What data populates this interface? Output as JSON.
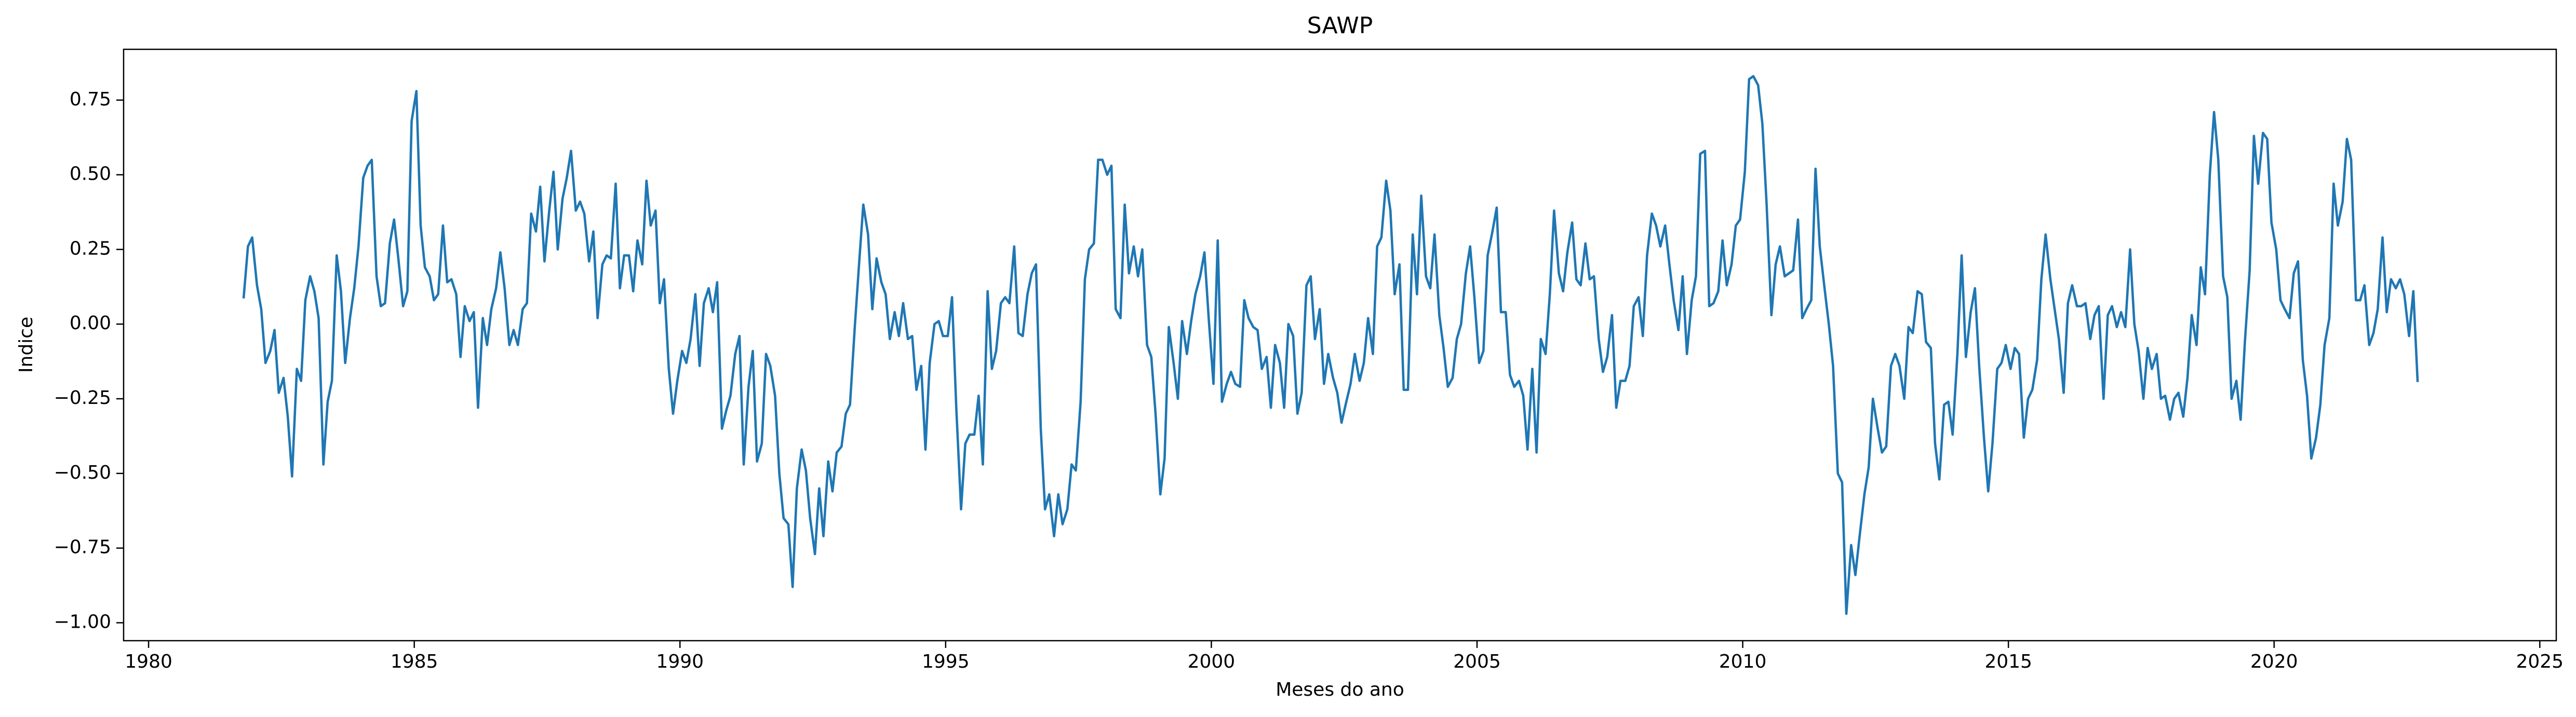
{
  "chart_data": {
    "type": "line",
    "title": "SAWP",
    "xlabel": "Meses do ano",
    "ylabel": "Indice",
    "xlim": [
      1979.53,
      2025.31
    ],
    "xticks": [
      1980,
      1985,
      1990,
      1995,
      2000,
      2005,
      2010,
      2015,
      2020,
      2025
    ],
    "ylim": [
      -1.06,
      0.92
    ],
    "yticks": [
      {
        "value": -1,
        "label": "−1.00"
      },
      {
        "value": -0.75,
        "label": "−0.75"
      },
      {
        "value": -0.5,
        "label": "−0.50"
      },
      {
        "value": -0.25,
        "label": "−0.25"
      },
      {
        "value": 0,
        "label": "0.00"
      },
      {
        "value": 0.25,
        "label": "0.25"
      },
      {
        "value": 0.5,
        "label": "0.50"
      },
      {
        "value": 0.75,
        "label": "0.75"
      }
    ],
    "x": [
      1981.79,
      1981.87,
      1981.95,
      1982.04,
      1982.12,
      1982.2,
      1982.29,
      1982.37,
      1982.45,
      1982.54,
      1982.62,
      1982.7,
      1982.79,
      1982.87,
      1982.95,
      1983.04,
      1983.12,
      1983.2,
      1983.29,
      1983.37,
      1983.45,
      1983.54,
      1983.62,
      1983.7,
      1983.79,
      1983.87,
      1983.95,
      1984.04,
      1984.12,
      1984.2,
      1984.29,
      1984.37,
      1984.45,
      1984.54,
      1984.62,
      1984.7,
      1984.79,
      1984.87,
      1984.95,
      1985.04,
      1985.12,
      1985.2,
      1985.29,
      1985.37,
      1985.45,
      1985.54,
      1985.62,
      1985.7,
      1985.79,
      1985.87,
      1985.95,
      1986.04,
      1986.12,
      1986.2,
      1986.29,
      1986.37,
      1986.45,
      1986.54,
      1986.62,
      1986.7,
      1986.79,
      1986.87,
      1986.95,
      1987.04,
      1987.12,
      1987.2,
      1987.29,
      1987.37,
      1987.45,
      1987.54,
      1987.62,
      1987.7,
      1987.79,
      1987.87,
      1987.95,
      1988.04,
      1988.12,
      1988.2,
      1988.29,
      1988.37,
      1988.45,
      1988.54,
      1988.62,
      1988.7,
      1988.79,
      1988.87,
      1988.95,
      1989.04,
      1989.12,
      1989.2,
      1989.29,
      1989.37,
      1989.45,
      1989.54,
      1989.62,
      1989.7,
      1989.79,
      1989.87,
      1989.95,
      1990.04,
      1990.12,
      1990.2,
      1990.29,
      1990.37,
      1990.45,
      1990.54,
      1990.62,
      1990.7,
      1990.79,
      1990.87,
      1990.95,
      1991.04,
      1991.12,
      1991.2,
      1991.29,
      1991.37,
      1991.45,
      1991.54,
      1991.62,
      1991.7,
      1991.79,
      1991.87,
      1991.95,
      1992.04,
      1992.12,
      1992.2,
      1992.29,
      1992.37,
      1992.45,
      1992.54,
      1992.62,
      1992.7,
      1992.79,
      1992.87,
      1992.95,
      1993.04,
      1993.12,
      1993.2,
      1993.29,
      1993.37,
      1993.45,
      1993.54,
      1993.62,
      1993.7,
      1993.79,
      1993.87,
      1993.95,
      1994.04,
      1994.12,
      1994.2,
      1994.29,
      1994.37,
      1994.45,
      1994.54,
      1994.62,
      1994.7,
      1994.79,
      1994.87,
      1994.95,
      1995.04,
      1995.12,
      1995.2,
      1995.29,
      1995.37,
      1995.45,
      1995.54,
      1995.62,
      1995.7,
      1995.79,
      1995.87,
      1995.95,
      1996.04,
      1996.12,
      1996.2,
      1996.29,
      1996.37,
      1996.45,
      1996.54,
      1996.62,
      1996.7,
      1996.79,
      1996.87,
      1996.95,
      1997.04,
      1997.12,
      1997.2,
      1997.29,
      1997.37,
      1997.45,
      1997.54,
      1997.62,
      1997.7,
      1997.79,
      1997.87,
      1997.95,
      1998.04,
      1998.12,
      1998.2,
      1998.29,
      1998.37,
      1998.45,
      1998.54,
      1998.62,
      1998.7,
      1998.79,
      1998.87,
      1998.95,
      1999.04,
      1999.12,
      1999.2,
      1999.29,
      1999.37,
      1999.45,
      1999.54,
      1999.62,
      1999.7,
      1999.79,
      1999.87,
      1999.95,
      2000.04,
      2000.12,
      2000.2,
      2000.29,
      2000.37,
      2000.45,
      2000.54,
      2000.62,
      2000.7,
      2000.79,
      2000.87,
      2000.95,
      2001.04,
      2001.12,
      2001.2,
      2001.29,
      2001.37,
      2001.45,
      2001.54,
      2001.62,
      2001.7,
      2001.79,
      2001.87,
      2001.95,
      2002.04,
      2002.12,
      2002.2,
      2002.29,
      2002.37,
      2002.45,
      2002.54,
      2002.62,
      2002.7,
      2002.79,
      2002.87,
      2002.95,
      2003.04,
      2003.12,
      2003.2,
      2003.29,
      2003.37,
      2003.45,
      2003.54,
      2003.62,
      2003.7,
      2003.79,
      2003.87,
      2003.95,
      2004.04,
      2004.12,
      2004.2,
      2004.29,
      2004.37,
      2004.45,
      2004.54,
      2004.62,
      2004.7,
      2004.79,
      2004.87,
      2004.95,
      2005.04,
      2005.12,
      2005.2,
      2005.29,
      2005.37,
      2005.45,
      2005.54,
      2005.62,
      2005.7,
      2005.79,
      2005.87,
      2005.95,
      2006.04,
      2006.12,
      2006.2,
      2006.29,
      2006.37,
      2006.45,
      2006.54,
      2006.62,
      2006.7,
      2006.79,
      2006.87,
      2006.95,
      2007.04,
      2007.12,
      2007.2,
      2007.29,
      2007.37,
      2007.45,
      2007.54,
      2007.62,
      2007.7,
      2007.79,
      2007.87,
      2007.95,
      2008.04,
      2008.12,
      2008.2,
      2008.29,
      2008.37,
      2008.45,
      2008.54,
      2008.62,
      2008.7,
      2008.79,
      2008.87,
      2008.95,
      2009.04,
      2009.12,
      2009.2,
      2009.29,
      2009.37,
      2009.45,
      2009.54,
      2009.62,
      2009.7,
      2009.79,
      2009.87,
      2009.95,
      2010.04,
      2010.12,
      2010.2,
      2010.29,
      2010.37,
      2010.45,
      2010.54,
      2010.62,
      2010.7,
      2010.79,
      2010.87,
      2010.95,
      2011.04,
      2011.12,
      2011.2,
      2011.29,
      2011.37,
      2011.45,
      2011.54,
      2011.62,
      2011.7,
      2011.79,
      2011.87,
      2011.95,
      2012.04,
      2012.12,
      2012.2,
      2012.29,
      2012.37,
      2012.45,
      2012.54,
      2012.62,
      2012.7,
      2012.79,
      2012.87,
      2012.95,
      2013.04,
      2013.12,
      2013.2,
      2013.29,
      2013.37,
      2013.45,
      2013.54,
      2013.62,
      2013.7,
      2013.79,
      2013.87,
      2013.95,
      2014.04,
      2014.12,
      2014.2,
      2014.29,
      2014.37,
      2014.45,
      2014.54,
      2014.62,
      2014.7,
      2014.79,
      2014.87,
      2014.95,
      2015.04,
      2015.12,
      2015.2,
      2015.29,
      2015.37,
      2015.45,
      2015.54,
      2015.62,
      2015.7,
      2015.79,
      2015.87,
      2015.95,
      2016.04,
      2016.12,
      2016.2,
      2016.29,
      2016.37,
      2016.45,
      2016.54,
      2016.62,
      2016.7,
      2016.79,
      2016.87,
      2016.95,
      2017.04,
      2017.12,
      2017.2,
      2017.29,
      2017.37,
      2017.45,
      2017.54,
      2017.62,
      2017.7,
      2017.79,
      2017.87,
      2017.95,
      2018.04,
      2018.12,
      2018.2,
      2018.29,
      2018.37,
      2018.45,
      2018.54,
      2018.62,
      2018.7,
      2018.79,
      2018.87,
      2018.95,
      2019.04,
      2019.12,
      2019.2,
      2019.29,
      2019.37,
      2019.45,
      2019.54,
      2019.62,
      2019.7,
      2019.79,
      2019.87,
      2019.95,
      2020.04,
      2020.12,
      2020.2,
      2020.29,
      2020.37,
      2020.45,
      2020.54,
      2020.62,
      2020.7,
      2020.79,
      2020.87,
      2020.95,
      2021.04,
      2021.12,
      2021.2,
      2021.29,
      2021.37,
      2021.45,
      2021.54,
      2021.62,
      2021.7,
      2021.79,
      2021.87,
      2021.95,
      2022.04,
      2022.12,
      2022.2,
      2022.29,
      2022.37,
      2022.45,
      2022.54,
      2022.62,
      2022.7
    ],
    "series": [
      {
        "color": "#1f77b4",
        "values": [
          0.09,
          0.26,
          0.29,
          0.13,
          0.05,
          -0.13,
          -0.09,
          -0.02,
          -0.23,
          -0.18,
          -0.31,
          -0.51,
          -0.15,
          -0.19,
          0.08,
          0.16,
          0.11,
          0.02,
          -0.47,
          -0.26,
          -0.19,
          0.23,
          0.11,
          -0.13,
          0.02,
          0.12,
          0.26,
          0.49,
          0.53,
          0.55,
          0.16,
          0.06,
          0.07,
          0.27,
          0.35,
          0.22,
          0.06,
          0.11,
          0.68,
          0.78,
          0.33,
          0.19,
          0.16,
          0.08,
          0.1,
          0.33,
          0.14,
          0.15,
          0.1,
          -0.11,
          0.06,
          0.01,
          0.04,
          -0.28,
          0.02,
          -0.07,
          0.05,
          0.12,
          0.24,
          0.12,
          -0.07,
          -0.02,
          -0.07,
          0.05,
          0.07,
          0.37,
          0.31,
          0.46,
          0.21,
          0.38,
          0.51,
          0.25,
          0.42,
          0.49,
          0.58,
          0.38,
          0.41,
          0.37,
          0.21,
          0.31,
          0.02,
          0.2,
          0.23,
          0.22,
          0.47,
          0.12,
          0.23,
          0.23,
          0.11,
          0.28,
          0.2,
          0.48,
          0.33,
          0.38,
          0.07,
          0.15,
          -0.15,
          -0.3,
          -0.19,
          -0.09,
          -0.13,
          -0.05,
          0.1,
          -0.14,
          0.07,
          0.12,
          0.04,
          0.14,
          -0.35,
          -0.29,
          -0.24,
          -0.1,
          -0.04,
          -0.47,
          -0.21,
          -0.09,
          -0.46,
          -0.4,
          -0.1,
          -0.14,
          -0.24,
          -0.5,
          -0.65,
          -0.67,
          -0.88,
          -0.55,
          -0.42,
          -0.49,
          -0.65,
          -0.77,
          -0.55,
          -0.71,
          -0.46,
          -0.56,
          -0.43,
          -0.41,
          -0.3,
          -0.27,
          -0.01,
          0.2,
          0.4,
          0.3,
          0.05,
          0.22,
          0.14,
          0.1,
          -0.05,
          0.04,
          -0.04,
          0.07,
          -0.05,
          -0.04,
          -0.22,
          -0.14,
          -0.42,
          -0.13,
          0.0,
          0.01,
          -0.04,
          -0.04,
          0.09,
          -0.28,
          -0.62,
          -0.4,
          -0.37,
          -0.37,
          -0.24,
          -0.47,
          0.11,
          -0.15,
          -0.09,
          0.07,
          0.09,
          0.07,
          0.26,
          -0.03,
          -0.04,
          0.1,
          0.17,
          0.2,
          -0.35,
          -0.62,
          -0.57,
          -0.71,
          -0.57,
          -0.67,
          -0.62,
          -0.47,
          -0.49,
          -0.26,
          0.15,
          0.25,
          0.27,
          0.55,
          0.55,
          0.5,
          0.53,
          0.05,
          0.02,
          0.4,
          0.17,
          0.26,
          0.16,
          0.25,
          -0.07,
          -0.11,
          -0.3,
          -0.57,
          -0.45,
          -0.01,
          -0.13,
          -0.25,
          0.01,
          -0.1,
          0.01,
          0.1,
          0.16,
          0.24,
          0.02,
          -0.2,
          0.28,
          -0.26,
          -0.2,
          -0.16,
          -0.2,
          -0.21,
          0.08,
          0.02,
          -0.01,
          -0.02,
          -0.15,
          -0.11,
          -0.28,
          -0.07,
          -0.13,
          -0.28,
          0.0,
          -0.04,
          -0.3,
          -0.23,
          0.13,
          0.16,
          -0.05,
          0.05,
          -0.2,
          -0.1,
          -0.18,
          -0.23,
          -0.33,
          -0.26,
          -0.2,
          -0.1,
          -0.19,
          -0.13,
          0.02,
          -0.1,
          0.26,
          0.29,
          0.48,
          0.38,
          0.1,
          0.2,
          -0.22,
          -0.22,
          0.3,
          0.1,
          0.43,
          0.16,
          0.12,
          0.3,
          0.03,
          -0.08,
          -0.21,
          -0.18,
          -0.05,
          0.0,
          0.17,
          0.26,
          0.09,
          -0.13,
          -0.09,
          0.23,
          0.31,
          0.39,
          0.04,
          0.04,
          -0.17,
          -0.21,
          -0.19,
          -0.24,
          -0.42,
          -0.15,
          -0.43,
          -0.05,
          -0.1,
          0.1,
          0.38,
          0.17,
          0.11,
          0.24,
          0.34,
          0.15,
          0.13,
          0.27,
          0.15,
          0.16,
          -0.05,
          -0.16,
          -0.11,
          0.03,
          -0.28,
          -0.19,
          -0.19,
          -0.14,
          0.06,
          0.09,
          -0.04,
          0.23,
          0.37,
          0.33,
          0.26,
          0.33,
          0.2,
          0.08,
          -0.02,
          0.16,
          -0.1,
          0.08,
          0.16,
          0.57,
          0.58,
          0.06,
          0.07,
          0.11,
          0.28,
          0.13,
          0.2,
          0.33,
          0.35,
          0.51,
          0.82,
          0.83,
          0.8,
          0.67,
          0.4,
          0.03,
          0.2,
          0.26,
          0.16,
          0.17,
          0.18,
          0.35,
          0.02,
          0.05,
          0.08,
          0.52,
          0.26,
          0.12,
          0.0,
          -0.14,
          -0.5,
          -0.53,
          -0.97,
          -0.74,
          -0.84,
          -0.71,
          -0.57,
          -0.48,
          -0.25,
          -0.35,
          -0.43,
          -0.41,
          -0.14,
          -0.1,
          -0.14,
          -0.25,
          -0.01,
          -0.03,
          0.11,
          0.1,
          -0.06,
          -0.08,
          -0.4,
          -0.52,
          -0.27,
          -0.26,
          -0.37,
          -0.1,
          0.23,
          -0.11,
          0.04,
          0.12,
          -0.14,
          -0.38,
          -0.56,
          -0.4,
          -0.15,
          -0.13,
          -0.07,
          -0.15,
          -0.08,
          -0.1,
          -0.38,
          -0.25,
          -0.22,
          -0.12,
          0.15,
          0.3,
          0.15,
          0.05,
          -0.05,
          -0.23,
          0.07,
          0.13,
          0.06,
          0.06,
          0.07,
          -0.05,
          0.03,
          0.06,
          -0.25,
          0.03,
          0.06,
          -0.01,
          0.04,
          -0.01,
          0.25,
          0.0,
          -0.09,
          -0.25,
          -0.08,
          -0.15,
          -0.1,
          -0.25,
          -0.24,
          -0.32,
          -0.25,
          -0.23,
          -0.31,
          -0.18,
          0.03,
          -0.07,
          0.19,
          0.1,
          0.5,
          0.71,
          0.55,
          0.16,
          0.09,
          -0.25,
          -0.19,
          -0.32,
          -0.06,
          0.18,
          0.63,
          0.47,
          0.64,
          0.62,
          0.34,
          0.25,
          0.08,
          0.05,
          0.02,
          0.17,
          0.21,
          -0.12,
          -0.24,
          -0.45,
          -0.38,
          -0.27,
          -0.07,
          0.02,
          0.47,
          0.33,
          0.41,
          0.62,
          0.55,
          0.08,
          0.08,
          0.13,
          -0.07,
          -0.03,
          0.05,
          0.29,
          0.04,
          0.15,
          0.12,
          0.15,
          0.1,
          -0.04,
          0.11,
          -0.19
        ]
      }
    ]
  }
}
